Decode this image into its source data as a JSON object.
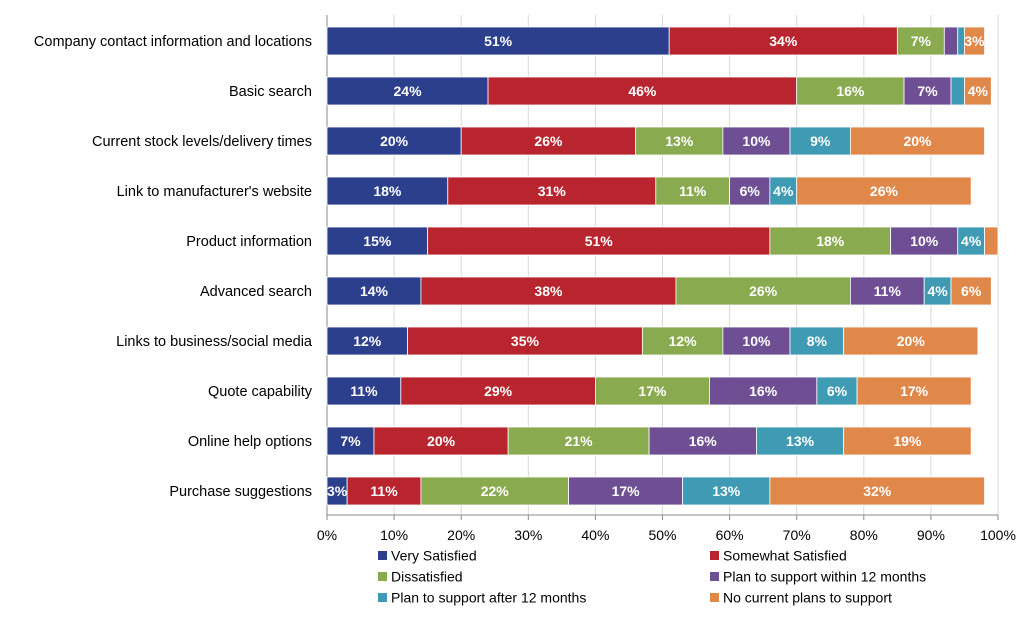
{
  "chart_data": {
    "type": "bar",
    "orientation": "horizontal",
    "stacked": true,
    "title": "",
    "xlabel": "",
    "ylabel": "",
    "xlim": [
      0,
      100
    ],
    "x_ticks": [
      "0%",
      "10%",
      "20%",
      "30%",
      "40%",
      "50%",
      "60%",
      "70%",
      "80%",
      "90%",
      "100%"
    ],
    "grid": "vertical",
    "legend_position": "bottom",
    "categories": [
      "Company contact information and locations",
      "Basic search",
      "Current stock levels/delivery times",
      "Link to manufacturer's website",
      "Product information",
      "Advanced search",
      "Links to business/social media",
      "Quote capability",
      "Online help options",
      "Purchase suggestions"
    ],
    "series": [
      {
        "name": "Very Satisfied",
        "color": "#2b3f8c",
        "values": [
          51,
          24,
          20,
          18,
          15,
          14,
          12,
          11,
          7,
          3
        ],
        "labels": [
          "51%",
          "24%",
          "20%",
          "18%",
          "15%",
          "14%",
          "12%",
          "11%",
          "7%",
          "3%"
        ]
      },
      {
        "name": "Somewhat Satisfied",
        "color": "#b8252f",
        "values": [
          34,
          46,
          26,
          31,
          51,
          38,
          35,
          29,
          20,
          11
        ],
        "labels": [
          "34%",
          "46%",
          "26%",
          "31%",
          "51%",
          "38%",
          "35%",
          "29%",
          "20%",
          "11%"
        ]
      },
      {
        "name": "Dissatisfied",
        "color": "#8aaa4f",
        "values": [
          7,
          16,
          13,
          11,
          18,
          26,
          12,
          17,
          21,
          22
        ],
        "labels": [
          "7%",
          "16%",
          "13%",
          "11%",
          "18%",
          "26%",
          "12%",
          "17%",
          "21%",
          "22%"
        ]
      },
      {
        "name": "Plan to support within 12 months",
        "color": "#6e4f93",
        "values": [
          2,
          7,
          10,
          6,
          10,
          11,
          10,
          16,
          16,
          17
        ],
        "labels": [
          "",
          "7%",
          "10%",
          "6%",
          "10%",
          "11%",
          "10%",
          "16%",
          "16%",
          "17%"
        ]
      },
      {
        "name": "Plan to support after 12 months",
        "color": "#3f9bb4",
        "values": [
          1,
          2,
          9,
          4,
          4,
          4,
          8,
          6,
          13,
          13
        ],
        "labels": [
          "",
          "",
          "9%",
          "4%",
          "4%",
          "4%",
          "8%",
          "6%",
          "13%",
          "13%"
        ]
      },
      {
        "name": "No current plans to support",
        "color": "#e0874a",
        "values": [
          3,
          4,
          20,
          26,
          2,
          6,
          20,
          17,
          19,
          32
        ],
        "labels": [
          "3%",
          "4%",
          "20%",
          "26%",
          "",
          "6%",
          "20%",
          "17%",
          "19%",
          "32%"
        ]
      }
    ]
  }
}
